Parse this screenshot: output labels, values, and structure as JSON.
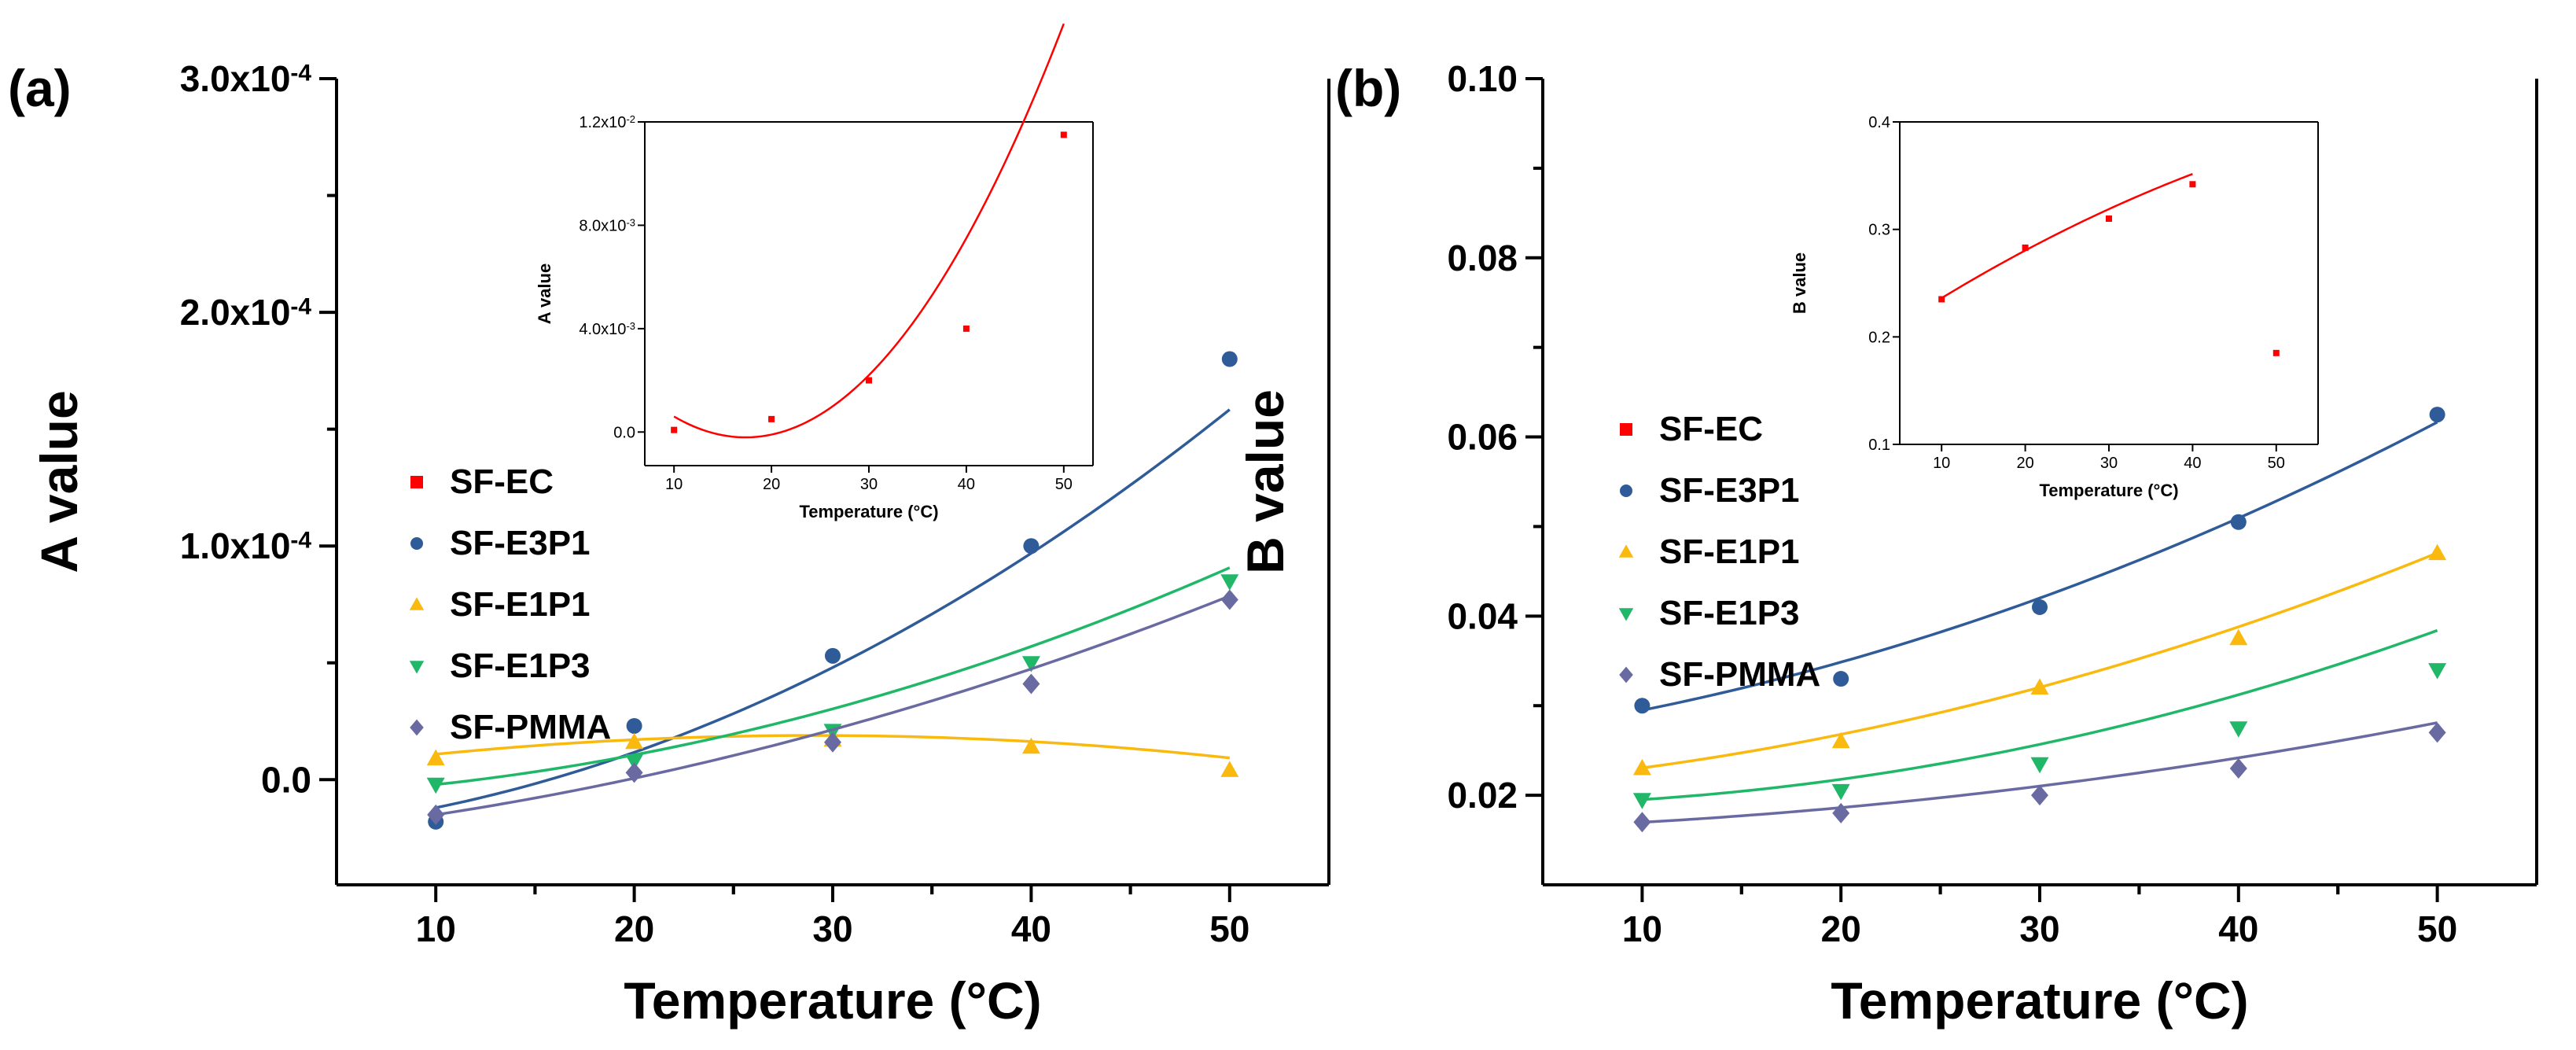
{
  "chart_data": [
    {
      "panel_label": "(a)",
      "type": "scatter",
      "xlabel": "Temperature (°C)",
      "ylabel": "A value",
      "xlim": [
        5,
        55
      ],
      "ylim": [
        -4.5e-05,
        0.0003
      ],
      "xticks": [
        "10",
        "20",
        "30",
        "40",
        "50"
      ],
      "yticks": [
        {
          "value": 0.0,
          "label": "0.0"
        },
        {
          "value": 0.0001,
          "base": "1.0x10",
          "exp": "-4"
        },
        {
          "value": 0.0002,
          "base": "2.0x10",
          "exp": "-4"
        },
        {
          "value": 0.0003,
          "base": "3.0x10",
          "exp": "-4"
        }
      ],
      "legend": {
        "placement": "middle-left"
      },
      "series": [
        {
          "name": "SF-EC",
          "marker": "square",
          "color": "#ff0000",
          "x": [],
          "y": [],
          "fit": null
        },
        {
          "name": "SF-E3P1",
          "marker": "circle",
          "color": "#2f5b98",
          "x": [
            10,
            20,
            30,
            40,
            50
          ],
          "y": [
            -1.8e-05,
            2.3e-05,
            5.3e-05,
            0.0001,
            0.00018
          ],
          "fit": [
            6.3e-08,
            4.8e-07,
            -2.31e-05
          ]
        },
        {
          "name": "SF-E1P1",
          "marker": "triangle-up",
          "color": "#f9b90f",
          "x": [
            10,
            20,
            30,
            40,
            50
          ],
          "y": [
            9e-06,
            1.6e-05,
            1.7e-05,
            1.4e-05,
            4e-06
          ],
          "fit": [
            -2.2e-08,
            1.28e-06,
            3e-07
          ]
        },
        {
          "name": "SF-E1P3",
          "marker": "triangle-down",
          "color": "#20b768",
          "x": [
            10,
            20,
            30,
            40,
            50
          ],
          "y": [
            -2e-06,
            8e-06,
            2.1e-05,
            5e-05,
            8.5e-05
          ],
          "fit": [
            3.5e-08,
            2.2e-07,
            -7.8e-06
          ]
        },
        {
          "name": "SF-PMMA",
          "marker": "diamond",
          "color": "#6a6aa2",
          "x": [
            10,
            20,
            30,
            40,
            50
          ],
          "y": [
            -1.5e-05,
            3e-06,
            1.6e-05,
            4.1e-05,
            7.7e-05
          ],
          "fit": [
            2.6e-08,
            7.8e-07,
            -2.54e-05
          ]
        }
      ],
      "inset": {
        "xlabel": "Temperature (°C)",
        "ylabel": "A value",
        "xlim": [
          7,
          53
        ],
        "ylim": [
          -0.0013,
          0.012
        ],
        "xticks": [
          "10",
          "20",
          "30",
          "40",
          "50"
        ],
        "yticks": [
          {
            "value": 0.0,
            "label": "0.0"
          },
          {
            "value": 0.004,
            "base": "4.0x10",
            "exp": "-3"
          },
          {
            "value": 0.008,
            "base": "8.0x10",
            "exp": "-3"
          },
          {
            "value": 0.012,
            "base": "1.2x10",
            "exp": "-2"
          }
        ],
        "series": [
          {
            "name": "SF-EC",
            "marker": "square",
            "color": "#ff0000",
            "x": [
              10,
              20,
              30,
              40,
              50
            ],
            "y": [
              8e-05,
              0.0005,
              0.002,
              0.004,
              0.0115
            ],
            "fit": [
              1.5e-05,
              -0.00052,
              0.0043
            ]
          }
        ]
      }
    },
    {
      "panel_label": "(b)",
      "type": "scatter",
      "xlabel": "Temperature (°C)",
      "ylabel": "B value",
      "xlim": [
        5,
        55
      ],
      "ylim": [
        0.01,
        0.1
      ],
      "xticks": [
        "10",
        "20",
        "30",
        "40",
        "50"
      ],
      "yticks": [
        {
          "value": 0.02,
          "label": "0.02"
        },
        {
          "value": 0.04,
          "label": "0.04"
        },
        {
          "value": 0.06,
          "label": "0.06"
        },
        {
          "value": 0.08,
          "label": "0.08"
        },
        {
          "value": 0.1,
          "label": "0.10"
        }
      ],
      "legend": {
        "placement": "middle-left"
      },
      "series": [
        {
          "name": "SF-EC",
          "marker": "square",
          "color": "#ff0000",
          "x": [],
          "y": [],
          "fit": null
        },
        {
          "name": "SF-E3P1",
          "marker": "circle",
          "color": "#2f5b98",
          "x": [
            10,
            20,
            30,
            40,
            50
          ],
          "y": [
            0.03,
            0.033,
            0.041,
            0.0505,
            0.0625
          ],
          "fit": [
            8.9e-06,
            0.00027,
            0.0259
          ]
        },
        {
          "name": "SF-E1P1",
          "marker": "triangle-up",
          "color": "#f9b90f",
          "x": [
            10,
            20,
            30,
            40,
            50
          ],
          "y": [
            0.023,
            0.026,
            0.032,
            0.0375,
            0.047
          ],
          "fit": [
            7.5e-06,
            0.00015,
            0.0208
          ]
        },
        {
          "name": "SF-E1P3",
          "marker": "triangle-down",
          "color": "#20b768",
          "x": [
            10,
            20,
            30,
            40,
            50
          ],
          "y": [
            0.0195,
            0.0205,
            0.0235,
            0.0275,
            0.034
          ],
          "fit": [
            8.2e-06,
            -2e-05,
            0.0189
          ]
        },
        {
          "name": "SF-PMMA",
          "marker": "diamond",
          "color": "#6a6aa2",
          "x": [
            10,
            20,
            30,
            40,
            50
          ],
          "y": [
            0.017,
            0.018,
            0.02,
            0.023,
            0.027
          ],
          "fit": [
            3.8e-06,
            5e-05,
            0.0161
          ]
        }
      ],
      "inset": {
        "xlabel": "Temperature (°C)",
        "ylabel": "B value",
        "xlim": [
          5,
          55
        ],
        "ylim": [
          0.1,
          0.4
        ],
        "xticks": [
          "10",
          "20",
          "30",
          "40",
          "50"
        ],
        "yticks": [
          {
            "value": 0.1,
            "label": "0.1"
          },
          {
            "value": 0.2,
            "label": "0.2"
          },
          {
            "value": 0.3,
            "label": "0.3"
          },
          {
            "value": 0.4,
            "label": "0.4"
          }
        ],
        "series": [
          {
            "name": "SF-EC",
            "marker": "square",
            "color": "#ff0000",
            "x": [
              10,
              20,
              30,
              40,
              50
            ],
            "y": [
              0.235,
              0.283,
              0.31,
              0.342,
              0.185
            ],
            "fit": [
              -2.9e-05,
              0.0053,
              0.186
            ],
            "fit_xmax": 40
          }
        ]
      }
    }
  ]
}
